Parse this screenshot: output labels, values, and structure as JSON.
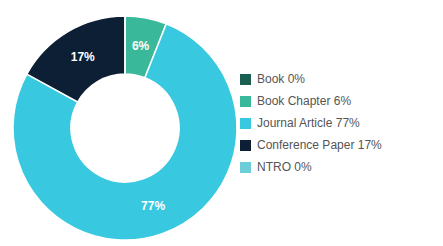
{
  "chart_data": {
    "type": "pie",
    "categories": [
      "Book 0%",
      "Book Chapter 6%",
      "Journal Article 77%",
      "Conference Paper 17%",
      "NTRO 0%"
    ],
    "values": [
      0.001,
      6,
      77,
      17,
      0.001
    ],
    "value_labels": [
      null,
      "6%",
      "77%",
      "17%",
      null
    ],
    "data_labels": true,
    "colors": [
      "#1a5e52",
      "#3ab89a",
      "#38c8e0",
      "#0d1f35",
      "#6dcdd8"
    ],
    "legend": "right"
  }
}
